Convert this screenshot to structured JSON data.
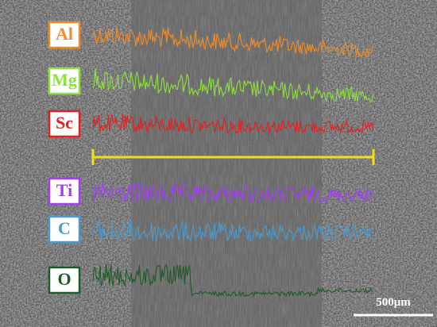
{
  "elements": [
    {
      "label": "Al",
      "color": "#f08c28"
    },
    {
      "label": "Mg",
      "color": "#8ee03c"
    },
    {
      "label": "Sc",
      "color": "#e81e1e"
    },
    {
      "label": "Ti",
      "color": "#a040f0"
    },
    {
      "label": "C",
      "color": "#4a9ad0"
    },
    {
      "label": "O",
      "color": "#1f5a2a"
    }
  ],
  "scan_line_color": "#f0e010",
  "scale_bar": "500μm"
}
